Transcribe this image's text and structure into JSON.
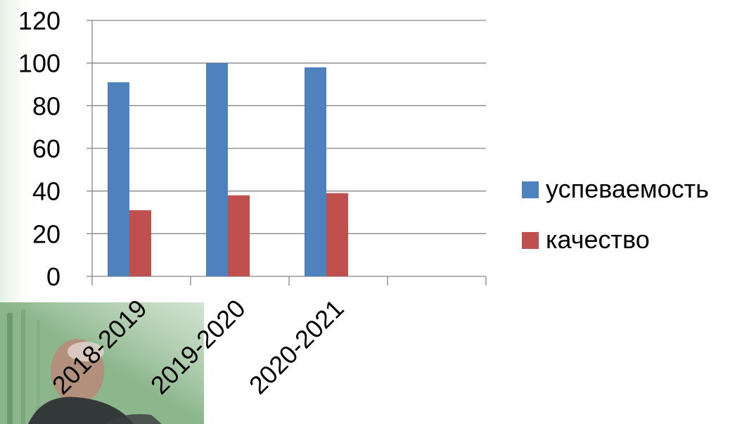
{
  "colors": {
    "series_1": "#4F81BD",
    "series_2": "#C0504D",
    "gridline": "#868686"
  },
  "chart_data": {
    "type": "bar",
    "categories": [
      "2018-2019",
      "2019-2020",
      "2020-2021",
      ""
    ],
    "series": [
      {
        "name": "успеваемость",
        "values": [
          91,
          100,
          98,
          null
        ],
        "color": "#4F81BD"
      },
      {
        "name": "качество",
        "values": [
          31,
          38,
          39,
          null
        ],
        "color": "#C0504D"
      }
    ],
    "title": "",
    "xlabel": "",
    "ylabel": "",
    "ylim": [
      0,
      120
    ],
    "yticks": [
      "0",
      "20",
      "40",
      "60",
      "80",
      "100",
      "120"
    ],
    "grid": true,
    "legend_position": "right"
  }
}
